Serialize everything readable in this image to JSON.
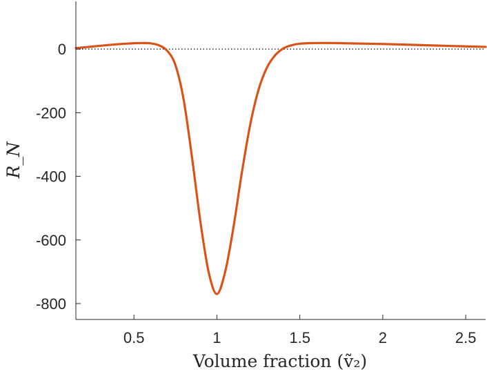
{
  "chart_data": {
    "type": "line",
    "title": "",
    "xlabel": "Volume fraction (ṽ₂)",
    "ylabel": "R_N",
    "xlim": [
      0.15,
      2.62
    ],
    "ylim": [
      -850,
      150
    ],
    "xticks": [
      0.5,
      1,
      1.5,
      2,
      2.5
    ],
    "xtick_labels": [
      "0.5",
      "1",
      "1.5",
      "2",
      "2.5"
    ],
    "yticks": [
      0,
      -200,
      -400,
      -600,
      -800
    ],
    "ytick_labels": [
      "0",
      "-200",
      "-400",
      "-600",
      "-800"
    ],
    "grid": false,
    "reference_line": {
      "y": 0,
      "style": "dotted"
    },
    "series": [
      {
        "color": "#d95319",
        "x": [
          0.15,
          0.25,
          0.35,
          0.45,
          0.55,
          0.6,
          0.65,
          0.7,
          0.75,
          0.8,
          0.85,
          0.9,
          0.95,
          1.0,
          1.05,
          1.1,
          1.15,
          1.2,
          1.25,
          1.3,
          1.35,
          1.4,
          1.45,
          1.5,
          1.6,
          1.7,
          1.8,
          2.0,
          2.2,
          2.4,
          2.62
        ],
        "y": [
          3,
          8,
          13,
          17,
          19,
          18,
          12,
          -5,
          -50,
          -160,
          -340,
          -540,
          -700,
          -770,
          -700,
          -560,
          -390,
          -240,
          -130,
          -60,
          -20,
          2,
          12,
          17,
          19,
          19,
          18,
          16,
          13,
          10,
          7
        ]
      }
    ]
  }
}
